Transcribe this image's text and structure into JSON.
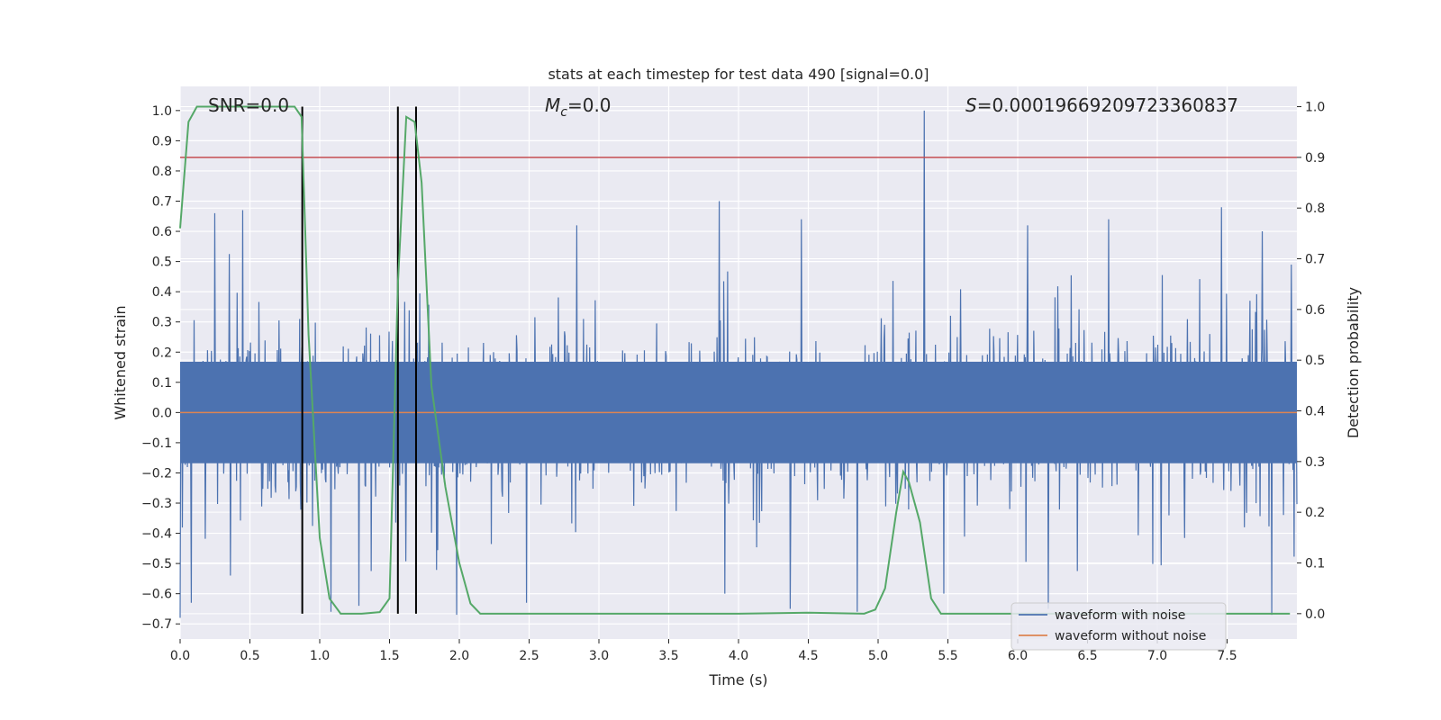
{
  "chart_data": {
    "type": "line",
    "title": "stats at each timestep for test data 490 [signal=0.0]",
    "xlabel": "Time (s)",
    "ylabel_left": "Whitened strain",
    "ylabel_right": "Detection probability",
    "xlim": [
      0.0,
      8.0
    ],
    "ylim_left": [
      -0.75,
      1.08
    ],
    "ylim_right": [
      -0.05,
      1.04
    ],
    "x_ticks": [
      0.0,
      0.5,
      1.0,
      1.5,
      2.0,
      2.5,
      3.0,
      3.5,
      4.0,
      4.5,
      5.0,
      5.5,
      6.0,
      6.5,
      7.0,
      7.5
    ],
    "x_tick_labels": [
      "0.0",
      "0.5",
      "1.0",
      "1.5",
      "2.0",
      "2.5",
      "3.0",
      "3.5",
      "4.0",
      "4.5",
      "5.0",
      "5.5",
      "6.0",
      "6.5",
      "7.0",
      "7.5"
    ],
    "y_ticks_left": [
      -0.7,
      -0.6,
      -0.5,
      -0.4,
      -0.3,
      -0.2,
      -0.1,
      0.0,
      0.1,
      0.2,
      0.3,
      0.4,
      0.5,
      0.6,
      0.7,
      0.8,
      0.9,
      1.0
    ],
    "y_tick_labels_left": [
      "−0.7",
      "−0.6",
      "−0.5",
      "−0.4",
      "−0.3",
      "−0.2",
      "−0.1",
      "0.0",
      "0.1",
      "0.2",
      "0.3",
      "0.4",
      "0.5",
      "0.6",
      "0.7",
      "0.8",
      "0.9",
      "1.0"
    ],
    "y_ticks_right": [
      0.0,
      0.1,
      0.2,
      0.3,
      0.4,
      0.5,
      0.6,
      0.7,
      0.8,
      0.9,
      1.0
    ],
    "y_tick_labels_right": [
      "0.0",
      "0.1",
      "0.2",
      "0.3",
      "0.4",
      "0.5",
      "0.6",
      "0.7",
      "0.8",
      "0.9",
      "1.0"
    ],
    "annotations": {
      "snr": "SNR=0.0",
      "mc_symbol": "M",
      "mc_sub": "c",
      "mc_value": "=0.0",
      "s_symbol": "S",
      "s_value": "=0.00019669209723360837"
    },
    "legend": {
      "position": "lower-right",
      "entries": [
        {
          "label": "waveform with noise",
          "color": "#4c72b0"
        },
        {
          "label": "waveform without noise",
          "color": "#dd8452"
        }
      ]
    },
    "threshold_right": 0.9,
    "vertical_markers_x": [
      0.875,
      1.56,
      1.69
    ],
    "noise_series": {
      "name": "waveform with noise",
      "color": "#4c72b0",
      "sample_count": 2000,
      "core_amplitude": 0.21,
      "typical_peak": 0.5,
      "spikes": [
        {
          "x": 0.25,
          "y": 0.66
        },
        {
          "x": 0.45,
          "y": 0.67
        },
        {
          "x": 0.0,
          "y": -0.68
        },
        {
          "x": 0.08,
          "y": -0.63
        },
        {
          "x": 0.36,
          "y": -0.54
        },
        {
          "x": 1.08,
          "y": -0.66
        },
        {
          "x": 1.28,
          "y": -0.64
        },
        {
          "x": 1.98,
          "y": -0.67
        },
        {
          "x": 2.48,
          "y": -0.63
        },
        {
          "x": 3.86,
          "y": 0.7
        },
        {
          "x": 3.9,
          "y": -0.6
        },
        {
          "x": 4.45,
          "y": 0.64
        },
        {
          "x": 4.37,
          "y": -0.65
        },
        {
          "x": 4.85,
          "y": -0.66
        },
        {
          "x": 5.33,
          "y": 1.0
        },
        {
          "x": 6.65,
          "y": 0.64
        },
        {
          "x": 6.22,
          "y": -0.65
        },
        {
          "x": 7.46,
          "y": 0.68
        },
        {
          "x": 7.82,
          "y": -0.67
        },
        {
          "x": 7.75,
          "y": 0.6
        },
        {
          "x": 6.07,
          "y": 0.62
        },
        {
          "x": 2.84,
          "y": 0.62
        },
        {
          "x": 5.47,
          "y": -0.6
        },
        {
          "x": 7.96,
          "y": 0.49
        }
      ]
    },
    "clean_series": {
      "name": "waveform without noise",
      "color": "#dd8452",
      "x": [
        0.0,
        8.0
      ],
      "y": [
        0.0,
        0.0
      ]
    },
    "probability_series": {
      "name": "Detection probability",
      "color": "#55a868",
      "x": [
        0.0,
        0.06,
        0.12,
        0.3,
        0.5,
        0.72,
        0.82,
        0.87,
        0.92,
        1.0,
        1.07,
        1.15,
        1.3,
        1.43,
        1.5,
        1.56,
        1.62,
        1.68,
        1.73,
        1.8,
        1.9,
        2.0,
        2.08,
        2.15,
        2.3,
        3.0,
        4.0,
        4.5,
        4.9,
        4.98,
        5.05,
        5.13,
        5.18,
        5.22,
        5.3,
        5.38,
        5.45,
        6.0,
        7.0,
        7.95
      ],
      "y": [
        0.76,
        0.97,
        1.0,
        1.0,
        1.0,
        1.0,
        1.0,
        0.98,
        0.55,
        0.15,
        0.03,
        0.0,
        0.0,
        0.003,
        0.03,
        0.65,
        0.98,
        0.97,
        0.85,
        0.45,
        0.25,
        0.1,
        0.02,
        0.0,
        0.0,
        0.0,
        0.0,
        0.002,
        0.0,
        0.008,
        0.05,
        0.2,
        0.28,
        0.26,
        0.18,
        0.03,
        0.0,
        0.0,
        0.0,
        0.0
      ]
    },
    "grid": true
  }
}
